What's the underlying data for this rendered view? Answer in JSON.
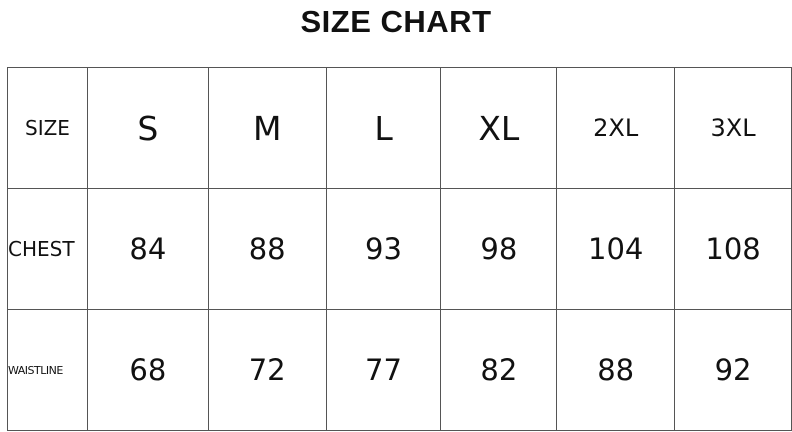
{
  "title": "SIZE CHART",
  "table": {
    "header": [
      "SIZE",
      "S",
      "M",
      "L",
      "XL",
      "2XL",
      "3XL"
    ],
    "rows": [
      {
        "label": "CHEST",
        "values": [
          "84",
          "88",
          "93",
          "98",
          "104",
          "108"
        ]
      },
      {
        "label": "WAISTLINE",
        "values": [
          "68",
          "72",
          "77",
          "82",
          "88",
          "92"
        ]
      }
    ]
  }
}
